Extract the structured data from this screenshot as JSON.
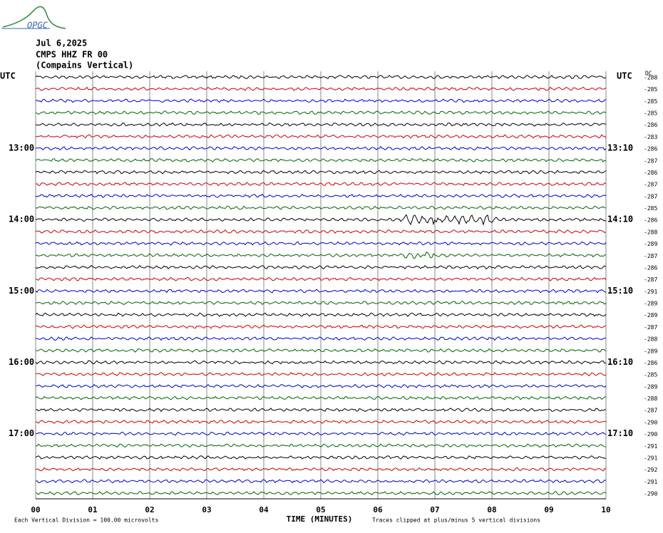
{
  "logo": "OPGC",
  "header": {
    "date": "Jul 6,2025",
    "station": "CMPS HHZ FR 00",
    "site": "(Compains Vertical)"
  },
  "left_zone": "UTC",
  "right_zone": "UTC",
  "dc_heading": "DC",
  "left_hours": [
    {
      "row": 6,
      "label": "13:00"
    },
    {
      "row": 12,
      "label": "14:00"
    },
    {
      "row": 18,
      "label": "15:00"
    },
    {
      "row": 24,
      "label": "16:00"
    },
    {
      "row": 30,
      "label": "17:00"
    }
  ],
  "right_hours": [
    {
      "row": 6,
      "label": "13:10"
    },
    {
      "row": 12,
      "label": "14:10"
    },
    {
      "row": 18,
      "label": "15:10"
    },
    {
      "row": 24,
      "label": "16:10"
    },
    {
      "row": 30,
      "label": "17:10"
    }
  ],
  "dc_offsets": [
    "-288",
    "-285",
    "-285",
    "-285",
    "-286",
    "-283",
    "-286",
    "-287",
    "-286",
    "-287",
    "-287",
    "-285",
    "-286",
    "-288",
    "-289",
    "-287",
    "-286",
    "-287",
    "-291",
    "-289",
    "-289",
    "-287",
    "-288",
    "-289",
    "-286",
    "-285",
    "-289",
    "-288",
    "-287",
    "-290",
    "-290",
    "-291",
    "-291",
    "-292",
    "-291",
    "-290"
  ],
  "trace_colors": [
    "#000000",
    "#cc0000",
    "#0000cc",
    "#006600"
  ],
  "x_ticks": [
    "00",
    "01",
    "02",
    "03",
    "04",
    "05",
    "06",
    "07",
    "08",
    "09",
    "10"
  ],
  "x_axis_title": "TIME (MINUTES)",
  "scale_note": "Each Vertical Division =  100.00 microvolts",
  "clip_note": "Traces clipped at plus/minus 5 vertical divisions"
}
